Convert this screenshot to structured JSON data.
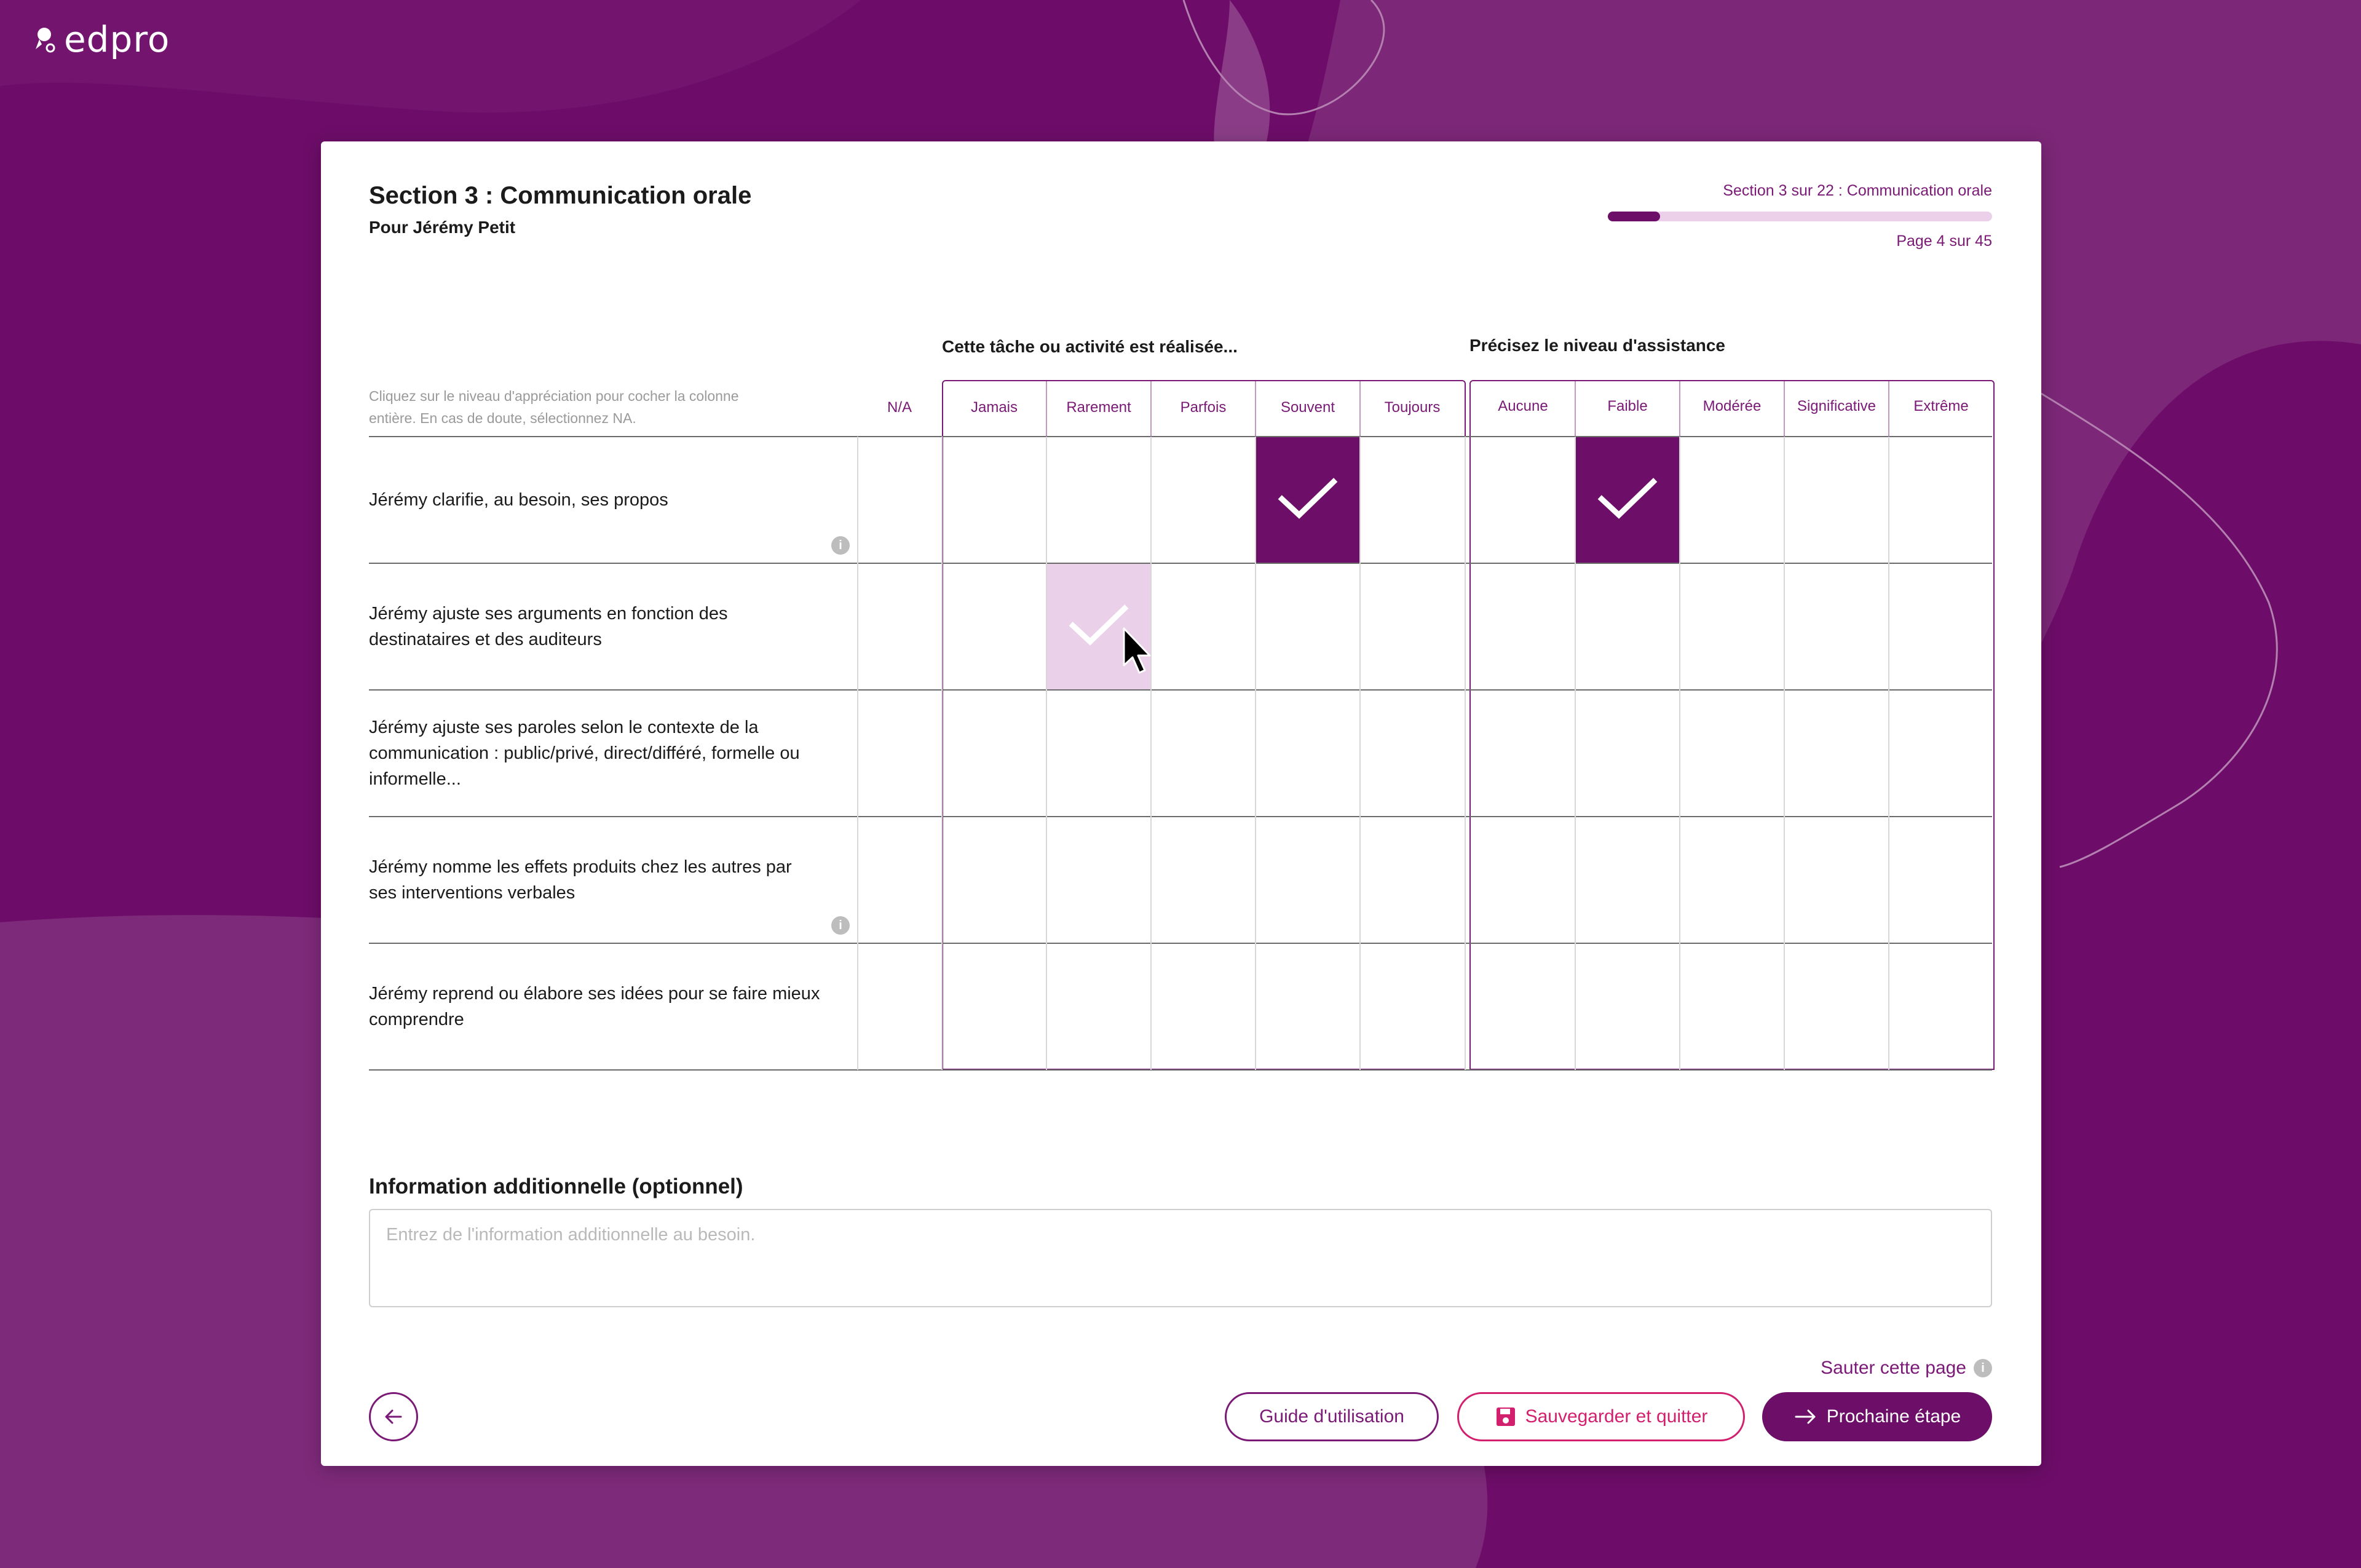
{
  "app": {
    "logo_text": "edpro"
  },
  "colors": {
    "brand": "#6d0e69",
    "selected_light": "#ead0e9",
    "save_accent": "#d21f6e"
  },
  "header": {
    "title": "Section 3 : Communication orale",
    "subtitle": "Pour Jérémy Petit",
    "progress_label": "Section 3 sur 22 : Communication orale",
    "progress_fraction": 0.136,
    "page_label": "Page 4 sur 45"
  },
  "grid": {
    "instruction": "Cliquez sur le niveau d'appréciation pour cocher la colonne entière. En cas de doute, sélectionnez NA.",
    "na_label": "N/A",
    "frequency": {
      "title": "Cette tâche ou activité est réalisée...",
      "columns": [
        "Jamais",
        "Rarement",
        "Parfois",
        "Souvent",
        "Toujours"
      ]
    },
    "assistance": {
      "title": "Précisez le niveau d'assistance",
      "columns": [
        "Aucune",
        "Faible",
        "Modérée",
        "Significative",
        "Extrême"
      ]
    },
    "rows": [
      {
        "label": "Jérémy clarifie, au besoin, ses propos",
        "info": true,
        "frequency": "Souvent",
        "assistance": "Faible"
      },
      {
        "label": "Jérémy ajuste ses arguments en fonction des destinataires et des auditeurs",
        "info": false,
        "hover": "Rarement"
      },
      {
        "label": "Jérémy ajuste ses paroles selon le contexte de la communication : public/privé, direct/différé, formelle ou informelle...",
        "info": false
      },
      {
        "label": "Jérémy nomme les effets produits chez les autres par ses interventions verbales",
        "info": true
      },
      {
        "label": "Jérémy reprend ou élabore ses idées pour se faire mieux comprendre",
        "info": false
      }
    ]
  },
  "additional": {
    "title": "Information additionnelle (optionnel)",
    "placeholder": "Entrez de l'information additionnelle au besoin.",
    "value": ""
  },
  "footer": {
    "skip_label": "Sauter cette page",
    "guide_label": "Guide d'utilisation",
    "save_label": "Sauvegarder et quitter",
    "next_label": "Prochaine étape",
    "info_glyph": "i"
  }
}
